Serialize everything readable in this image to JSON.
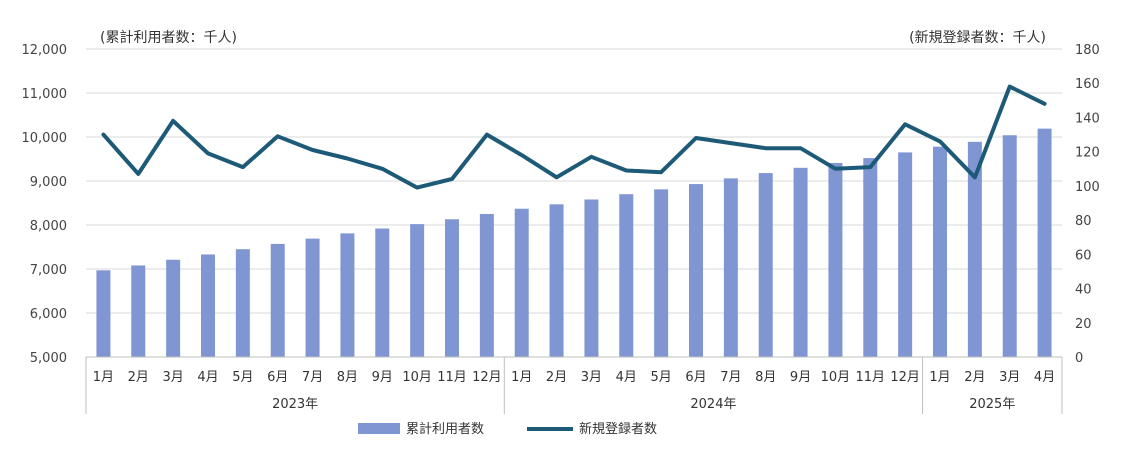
{
  "chart_data": {
    "type": "bar+line",
    "left_axis_unit": "(累計利用者数：千人)",
    "right_axis_unit": "(新規登録者数：千人)",
    "left_ylim": [
      5000,
      12000
    ],
    "left_ticks": [
      "5,000",
      "6,000",
      "7,000",
      "8,000",
      "9,000",
      "10,000",
      "11,000",
      "12,000"
    ],
    "right_ylim": [
      0,
      180
    ],
    "right_ticks": [
      "0",
      "20",
      "40",
      "60",
      "80",
      "100",
      "120",
      "140",
      "160",
      "180"
    ],
    "categories": [
      "1月",
      "2月",
      "3月",
      "4月",
      "5月",
      "6月",
      "7月",
      "8月",
      "9月",
      "10月",
      "11月",
      "12月",
      "1月",
      "2月",
      "3月",
      "4月",
      "5月",
      "6月",
      "7月",
      "8月",
      "9月",
      "10月",
      "11月",
      "12月",
      "1月",
      "2月",
      "3月",
      "4月"
    ],
    "years": [
      {
        "label": "2023年",
        "start": 0,
        "count": 12
      },
      {
        "label": "2024年",
        "start": 12,
        "count": 12
      },
      {
        "label": "2025年",
        "start": 24,
        "count": 4
      }
    ],
    "series": [
      {
        "name": "累計利用者数",
        "type": "bar",
        "axis": "left",
        "color": "#7f96d3",
        "values": [
          6970,
          7080,
          7210,
          7330,
          7450,
          7570,
          7690,
          7810,
          7920,
          8020,
          8130,
          8250,
          8370,
          8470,
          8580,
          8700,
          8810,
          8930,
          9060,
          9180,
          9300,
          9410,
          9520,
          9650,
          9780,
          9890,
          10040,
          10190
        ]
      },
      {
        "name": "新規登録者数",
        "type": "line",
        "axis": "right",
        "color": "#1c5a78",
        "values": [
          130,
          107,
          138,
          119,
          111,
          129,
          121,
          116,
          110,
          99,
          104,
          130,
          118,
          105,
          117,
          109,
          108,
          128,
          125,
          122,
          122,
          110,
          111,
          136,
          126,
          105,
          158,
          148
        ]
      }
    ],
    "grid": true,
    "legend_position": "bottom"
  }
}
